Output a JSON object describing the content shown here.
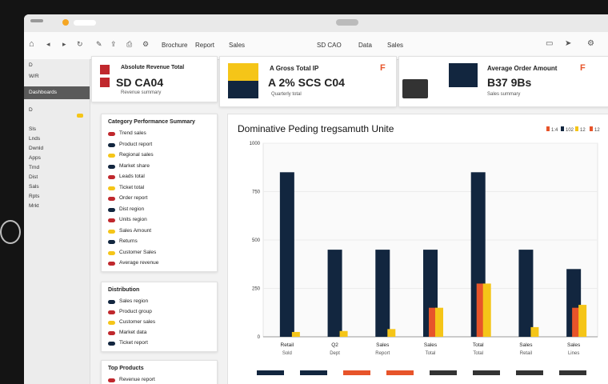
{
  "menu": [
    "Brochure",
    "Report",
    "Sales",
    "SD CAO",
    "Data",
    "Sales"
  ],
  "sidebar_items": [
    "D",
    "W/R",
    "Dashboards",
    "D",
    "Sls",
    "Lnds",
    "Dwnld",
    "Apps",
    "Trnd",
    "Dist",
    "Sals",
    "Rpts",
    "Mrkt"
  ],
  "kpi": [
    {
      "title": "Absolute Revenue Total",
      "value": "SD CA04",
      "sub": "Revenue summary",
      "icon": "F"
    },
    {
      "title": "A Gross Total IP",
      "value": "A 2% SCS C04",
      "sub": "Quarterly total",
      "icon": "F"
    },
    {
      "title": "Average Order Amount",
      "value": "B37 9Bs",
      "sub": "Sales summary",
      "icon": "F"
    }
  ],
  "lists": [
    {
      "title": "Category Performance Summary",
      "rows": [
        "Trend sales",
        "Product report",
        "Regional sales",
        "Market share",
        "Leads total",
        "Ticket total",
        "Order report",
        "Dist region",
        "Units region",
        "Sales Amount",
        "Returns",
        "Customer Sales",
        "Average revenue"
      ]
    },
    {
      "title": "Distribution",
      "rows": [
        "Sales region",
        "Product group",
        "Customer sales",
        "Market data",
        "Ticket report"
      ]
    },
    {
      "title": "Top Products",
      "rows": [
        "Revenue report"
      ]
    }
  ],
  "chart_data": {
    "type": "bar",
    "title": "Dominative Peding tregsamuth Unite",
    "legend": [
      "1:4",
      "102",
      "12",
      "12"
    ],
    "yticks": [
      "1000",
      "750",
      "500",
      "250",
      "0"
    ],
    "categories": [
      "Retail",
      "Q2",
      "Sales",
      "Sales",
      "Total",
      "Sales",
      "Sales"
    ],
    "category_sub": [
      "Sold",
      "Dept",
      "Report",
      "Total",
      "Total",
      "Retail",
      "Lines"
    ],
    "series": [
      {
        "color": "#12263f",
        "values": [
          850,
          450,
          450,
          450,
          850,
          450,
          350
        ]
      },
      {
        "color": "#e7542a",
        "values": [
          0,
          0,
          0,
          150,
          275,
          0,
          150
        ]
      },
      {
        "color": "#f5c518",
        "values": [
          25,
          30,
          40,
          150,
          275,
          50,
          165
        ]
      }
    ],
    "ylim": [
      0,
      1000
    ],
    "footer_colors": [
      "#12263f",
      "#12263f",
      "#e7542a",
      "#e7542a",
      "#333333",
      "#333333",
      "#333333",
      "#333333"
    ]
  },
  "colors": {
    "navy": "#12263f",
    "orange": "#e7542a",
    "yellow": "#f5c518",
    "red": "#c0282d"
  }
}
